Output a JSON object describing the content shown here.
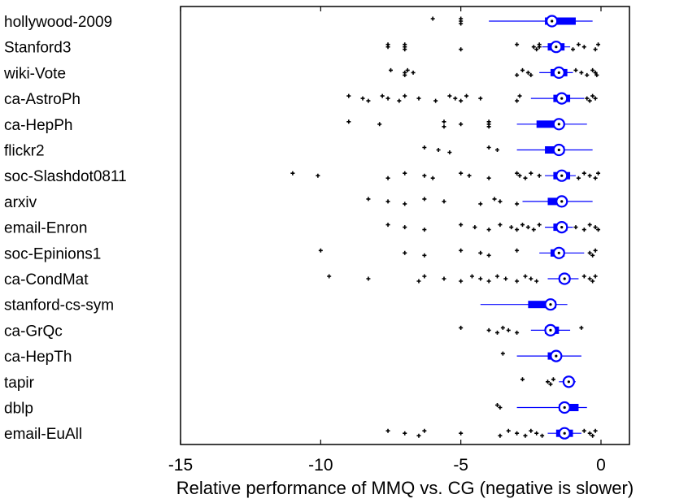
{
  "chart_data": {
    "type": "boxplot",
    "orientation": "horizontal",
    "title": "",
    "xlabel": "Relative performance of MMQ vs. CG (negative is slower)",
    "ylabel": "",
    "xlim": [
      -15,
      1
    ],
    "xticks": [
      -15,
      -10,
      -5,
      0
    ],
    "xtick_labels": [
      "-15",
      "-10",
      "-5",
      "0"
    ],
    "colors": {
      "box": "#0000ff",
      "outlier": "#000000",
      "frame": "#000000"
    },
    "categories": [
      "hollywood-2009",
      "Stanford3",
      "wiki-Vote",
      "ca-AstroPh",
      "ca-HepPh",
      "flickr2",
      "soc-Slashdot0811",
      "arxiv",
      "email-Enron",
      "soc-Epinions1",
      "ca-CondMat",
      "stanford-cs-sym",
      "ca-GrQc",
      "ca-HepTh",
      "tapir",
      "dblp",
      "email-EuAll"
    ],
    "series": [
      {
        "name": "hollywood-2009",
        "whisker_low": -4.0,
        "q1": -2.0,
        "median": -1.75,
        "q3": -0.9,
        "whisker_high": -0.3,
        "outliers": [
          -6.0,
          -5.0,
          -5.0,
          -5.0
        ]
      },
      {
        "name": "Stanford3",
        "whisker_low": -2.1,
        "q1": -1.9,
        "median": -1.6,
        "q3": -1.3,
        "whisker_high": -1.1,
        "outliers": [
          -7.6,
          -7.6,
          -7.0,
          -7.0,
          -7.0,
          -5.0,
          -3.0,
          -2.4,
          -2.3,
          -2.2,
          -2.2,
          -1.0,
          -0.8,
          -0.6,
          -0.2,
          -0.1
        ]
      },
      {
        "name": "wiki-Vote",
        "whisker_low": -2.2,
        "q1": -1.8,
        "median": -1.5,
        "q3": -1.2,
        "whisker_high": -1.0,
        "outliers": [
          -7.5,
          -7.0,
          -7.0,
          -6.9,
          -6.7,
          -3.0,
          -2.8,
          -2.6,
          -2.5,
          -0.9,
          -0.7,
          -0.5,
          -0.3,
          -0.2,
          -0.15
        ]
      },
      {
        "name": "ca-AstroPh",
        "whisker_low": -2.5,
        "q1": -1.7,
        "median": -1.4,
        "q3": -1.1,
        "whisker_high": -0.6,
        "outliers": [
          -9.0,
          -8.5,
          -8.3,
          -7.8,
          -7.6,
          -7.2,
          -7.0,
          -6.5,
          -5.9,
          -5.4,
          -5.2,
          -5.0,
          -4.8,
          -4.3,
          -3.0,
          -2.9,
          -0.5,
          -0.4,
          -0.3,
          -0.2
        ]
      },
      {
        "name": "ca-HepPh",
        "whisker_low": -3.0,
        "q1": -2.3,
        "median": -1.5,
        "q3": -1.4,
        "whisker_high": -0.5,
        "outliers": [
          -9.0,
          -7.9,
          -5.6,
          -5.6,
          -5.0,
          -4.0,
          -4.0,
          -4.0
        ]
      },
      {
        "name": "flickr2",
        "whisker_low": -3.0,
        "q1": -2.0,
        "median": -1.5,
        "q3": -1.3,
        "whisker_high": -0.3,
        "outliers": [
          -6.3,
          -5.8,
          -5.4,
          -4.0,
          -3.7
        ]
      },
      {
        "name": "soc-Slashdot0811",
        "whisker_low": -2.0,
        "q1": -1.7,
        "median": -1.4,
        "q3": -1.1,
        "whisker_high": -0.9,
        "outliers": [
          -11.0,
          -10.1,
          -7.6,
          -7.0,
          -6.3,
          -6.0,
          -5.0,
          -4.7,
          -4.0,
          -3.0,
          -2.9,
          -2.7,
          -2.5,
          -2.2,
          -0.8,
          -0.6,
          -0.4,
          -0.2,
          -0.1
        ]
      },
      {
        "name": "arxiv",
        "whisker_low": -2.8,
        "q1": -1.9,
        "median": -1.4,
        "q3": -1.3,
        "whisker_high": -0.3,
        "outliers": [
          -8.3,
          -7.6,
          -7.0,
          -6.3,
          -5.6,
          -4.3,
          -3.8,
          -3.6,
          -3.0
        ]
      },
      {
        "name": "email-Enron",
        "whisker_low": -2.0,
        "q1": -1.7,
        "median": -1.4,
        "q3": -1.2,
        "whisker_high": -1.0,
        "outliers": [
          -7.6,
          -7.0,
          -6.3,
          -5.0,
          -4.5,
          -4.0,
          -3.6,
          -3.2,
          -3.0,
          -2.8,
          -2.6,
          -2.4,
          -2.2,
          -0.9,
          -0.6,
          -0.4,
          -0.2,
          -0.1
        ]
      },
      {
        "name": "soc-Epinions1",
        "whisker_low": -2.2,
        "q1": -1.8,
        "median": -1.5,
        "q3": -1.3,
        "whisker_high": -0.6,
        "outliers": [
          -10.0,
          -7.0,
          -6.3,
          -5.0,
          -4.3,
          -4.0,
          -3.0,
          -0.4,
          -0.3,
          -0.2
        ]
      },
      {
        "name": "ca-CondMat",
        "whisker_low": -1.9,
        "q1": -1.5,
        "median": -1.3,
        "q3": -1.1,
        "whisker_high": -0.8,
        "outliers": [
          -9.7,
          -8.3,
          -6.5,
          -6.3,
          -5.6,
          -5.0,
          -4.6,
          -4.3,
          -4.0,
          -3.7,
          -3.4,
          -3.0,
          -2.7,
          -2.5,
          -2.3,
          -0.6,
          -0.4,
          -0.3,
          -0.2
        ]
      },
      {
        "name": "stanford-cs-sym",
        "whisker_low": -4.3,
        "q1": -2.6,
        "median": -1.8,
        "q3": -1.6,
        "whisker_high": -1.2,
        "outliers": []
      },
      {
        "name": "ca-GrQc",
        "whisker_low": -2.5,
        "q1": -2.0,
        "median": -1.8,
        "q3": -1.5,
        "whisker_high": -1.1,
        "outliers": [
          -5.0,
          -4.0,
          -3.7,
          -3.5,
          -3.3,
          -3.0,
          -0.7
        ]
      },
      {
        "name": "ca-HepTh",
        "whisker_low": -3.0,
        "q1": -1.9,
        "median": -1.6,
        "q3": -1.5,
        "whisker_high": -0.7,
        "outliers": [
          -3.5
        ]
      },
      {
        "name": "tapir",
        "whisker_low": -1.5,
        "q1": -1.3,
        "median": -1.15,
        "q3": -1.0,
        "whisker_high": -0.9,
        "outliers": [
          -2.8,
          -1.9,
          -1.8,
          -1.7
        ]
      },
      {
        "name": "dblp",
        "whisker_low": -3.0,
        "q1": -1.5,
        "median": -1.3,
        "q3": -0.8,
        "whisker_high": -0.5,
        "outliers": [
          -3.7,
          -3.6
        ]
      },
      {
        "name": "email-EuAll",
        "whisker_low": -1.9,
        "q1": -1.6,
        "median": -1.3,
        "q3": -1.0,
        "whisker_high": -0.7,
        "outliers": [
          -7.6,
          -7.0,
          -6.5,
          -6.3,
          -5.0,
          -3.6,
          -3.3,
          -3.0,
          -2.7,
          -2.5,
          -2.3,
          -2.1,
          -0.6,
          -0.4,
          -0.3,
          -0.2
        ]
      }
    ]
  }
}
